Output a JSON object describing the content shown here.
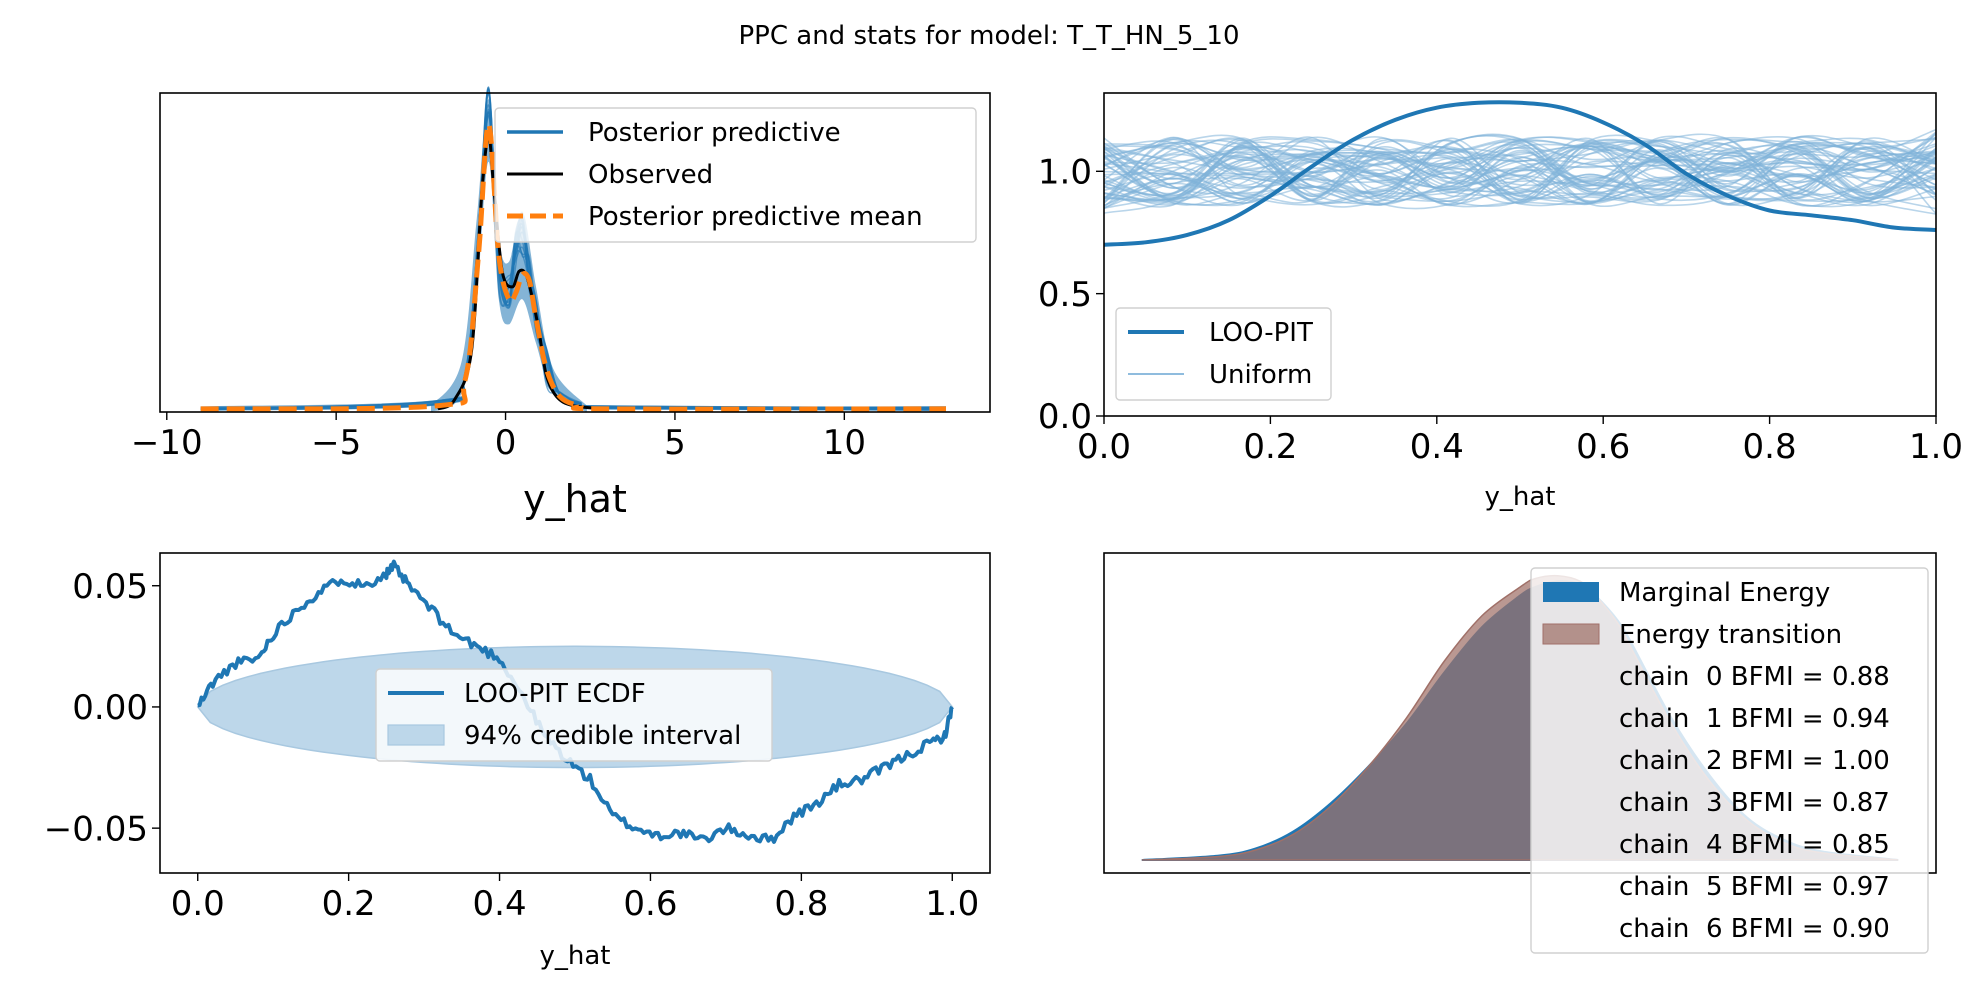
{
  "figure": {
    "title": "PPC and stats for model: T_T_HN_5_10"
  },
  "colors": {
    "blue": "#1f77b4",
    "orange": "#ff7f0e",
    "light_blue": "#7fb2d9",
    "band": "#bdd7ea",
    "brown": "#a07068",
    "dark_fill": "#705c62",
    "black": "#000000"
  },
  "chart_data": [
    {
      "id": "ppc",
      "type": "line",
      "xlabel": "y_hat",
      "xlim": [
        -10.2,
        14.3
      ],
      "ylim": [
        0,
        1.02
      ],
      "xticks": [
        -10,
        -5,
        0,
        5,
        10
      ],
      "xticklabels": [
        "−10",
        "−5",
        "0",
        "5",
        "10"
      ],
      "legend": {
        "placement": "top-right",
        "entries": [
          "Posterior predictive",
          "Observed",
          "Posterior predictive mean"
        ]
      },
      "series": [
        {
          "name": "Posterior predictive",
          "x": [
            -9,
            -2,
            -1.2,
            -0.8,
            -0.5,
            -0.2,
            0.1,
            0.3,
            0.5,
            0.7,
            0.9,
            1.2,
            1.6,
            2.2,
            3,
            13
          ],
          "y": [
            0.01,
            0.03,
            0.12,
            0.55,
            0.98,
            0.45,
            0.38,
            0.52,
            0.56,
            0.45,
            0.3,
            0.15,
            0.06,
            0.025,
            0.015,
            0.01
          ]
        },
        {
          "name": "Observed",
          "x": [
            -2,
            -1.5,
            -1,
            -0.7,
            -0.5,
            -0.35,
            -0.1,
            0.2,
            0.4,
            0.6,
            0.8,
            1,
            1.2,
            1.5,
            2,
            3
          ],
          "y": [
            0.01,
            0.04,
            0.2,
            0.7,
            0.88,
            0.72,
            0.45,
            0.4,
            0.45,
            0.44,
            0.36,
            0.25,
            0.12,
            0.05,
            0.02,
            0.01
          ]
        },
        {
          "name": "Posterior predictive mean",
          "x": [
            -9,
            -2,
            -1.2,
            -0.8,
            -0.5,
            -0.2,
            0.1,
            0.3,
            0.5,
            0.7,
            0.9,
            1.2,
            1.6,
            2.2,
            3,
            13
          ],
          "y": [
            0.01,
            0.02,
            0.1,
            0.5,
            0.92,
            0.5,
            0.36,
            0.38,
            0.44,
            0.42,
            0.3,
            0.14,
            0.05,
            0.02,
            0.01,
            0.01
          ]
        }
      ]
    },
    {
      "id": "loo_pit",
      "type": "line",
      "xlabel": "y_hat",
      "xlim": [
        0,
        1
      ],
      "ylim": [
        0,
        1.32
      ],
      "xticks": [
        0,
        0.2,
        0.4,
        0.6,
        0.8,
        1
      ],
      "xticklabels": [
        "0.0",
        "0.2",
        "0.4",
        "0.6",
        "0.8",
        "1.0"
      ],
      "yticks": [
        0,
        0.5,
        1
      ],
      "yticklabels": [
        "0.0",
        "0.5",
        "1.0"
      ],
      "legend": {
        "placement": "lower-left",
        "entries": [
          "LOO-PIT",
          "Uniform"
        ]
      },
      "series": [
        {
          "name": "LOO-PIT",
          "x": [
            0,
            0.05,
            0.1,
            0.15,
            0.2,
            0.25,
            0.3,
            0.35,
            0.4,
            0.45,
            0.5,
            0.55,
            0.6,
            0.65,
            0.7,
            0.75,
            0.8,
            0.85,
            0.9,
            0.95,
            1
          ],
          "y": [
            0.7,
            0.71,
            0.74,
            0.8,
            0.9,
            1.02,
            1.13,
            1.21,
            1.26,
            1.28,
            1.28,
            1.26,
            1.2,
            1.11,
            0.99,
            0.9,
            0.84,
            0.82,
            0.8,
            0.77,
            0.76
          ]
        },
        {
          "name": "Uniform",
          "samples": 60,
          "band": [
            0.82,
            1.2
          ],
          "center": 1.0
        }
      ]
    },
    {
      "id": "ecdf",
      "type": "line",
      "xlabel": "y_hat",
      "xlim": [
        -0.05,
        1.05
      ],
      "ylim": [
        -0.0685,
        0.0635
      ],
      "xticks": [
        0,
        0.2,
        0.4,
        0.6,
        0.8,
        1
      ],
      "xticklabels": [
        "0.0",
        "0.2",
        "0.4",
        "0.6",
        "0.8",
        "1.0"
      ],
      "yticks": [
        0.05,
        0,
        -0.05
      ],
      "yticklabels": [
        "0.05",
        "0.00",
        "−0.05"
      ],
      "legend": {
        "placement": "center",
        "entries": [
          "LOO-PIT ECDF",
          "94% credible interval"
        ]
      },
      "series": [
        {
          "name": "LOO-PIT ECDF",
          "x": [
            0,
            0.02,
            0.05,
            0.08,
            0.1,
            0.13,
            0.16,
            0.19,
            0.22,
            0.25,
            0.26,
            0.28,
            0.31,
            0.34,
            0.37,
            0.4,
            0.43,
            0.46,
            0.49,
            0.52,
            0.55,
            0.58,
            0.61,
            0.64,
            0.67,
            0.7,
            0.73,
            0.76,
            0.79,
            0.82,
            0.85,
            0.88,
            0.91,
            0.94,
            0.97,
            0.99,
            1
          ],
          "y": [
            0,
            0.01,
            0.018,
            0.02,
            0.03,
            0.04,
            0.047,
            0.053,
            0.05,
            0.055,
            0.058,
            0.05,
            0.04,
            0.03,
            0.025,
            0.02,
            0.005,
            -0.012,
            -0.022,
            -0.03,
            -0.045,
            -0.05,
            -0.053,
            -0.052,
            -0.055,
            -0.05,
            -0.053,
            -0.055,
            -0.045,
            -0.04,
            -0.032,
            -0.03,
            -0.025,
            -0.02,
            -0.015,
            -0.012,
            0
          ]
        },
        {
          "name": "94% credible interval",
          "half_width": 0.025
        }
      ]
    },
    {
      "id": "energy",
      "type": "area",
      "xlim": [
        -0.05,
        1.05
      ],
      "ylim": [
        0,
        1.08
      ],
      "legend": {
        "placement": "top-right",
        "entries": [
          "Marginal Energy",
          "Energy transition"
        ]
      },
      "bfmi": [
        {
          "label": "chain  0 BFMI = 0.88"
        },
        {
          "label": "chain  1 BFMI = 0.94"
        },
        {
          "label": "chain  2 BFMI = 1.00"
        },
        {
          "label": "chain  3 BFMI = 0.87"
        },
        {
          "label": "chain  4 BFMI = 0.85"
        },
        {
          "label": "chain  5 BFMI = 0.97"
        },
        {
          "label": "chain  6 BFMI = 0.90"
        }
      ],
      "series": [
        {
          "name": "Marginal Energy",
          "x": [
            0,
            0.1,
            0.15,
            0.2,
            0.25,
            0.3,
            0.35,
            0.4,
            0.45,
            0.5,
            0.52,
            0.55,
            0.58,
            0.6,
            0.63,
            0.65,
            0.7,
            0.75,
            0.8,
            0.85,
            0.9,
            1
          ],
          "y": [
            0,
            0.015,
            0.04,
            0.1,
            0.2,
            0.33,
            0.48,
            0.66,
            0.82,
            0.93,
            0.96,
            0.98,
            0.97,
            0.93,
            0.84,
            0.75,
            0.5,
            0.3,
            0.15,
            0.07,
            0.03,
            0
          ]
        },
        {
          "name": "Energy transition",
          "x": [
            0,
            0.1,
            0.15,
            0.2,
            0.25,
            0.3,
            0.35,
            0.4,
            0.45,
            0.5,
            0.52,
            0.55,
            0.58,
            0.6,
            0.63,
            0.65,
            0.7,
            0.75,
            0.8,
            0.85,
            0.9,
            1
          ],
          "y": [
            0,
            0.012,
            0.035,
            0.09,
            0.19,
            0.33,
            0.5,
            0.7,
            0.86,
            0.96,
            0.99,
            1.0,
            0.98,
            0.93,
            0.83,
            0.73,
            0.48,
            0.28,
            0.14,
            0.06,
            0.025,
            0
          ]
        }
      ]
    }
  ]
}
